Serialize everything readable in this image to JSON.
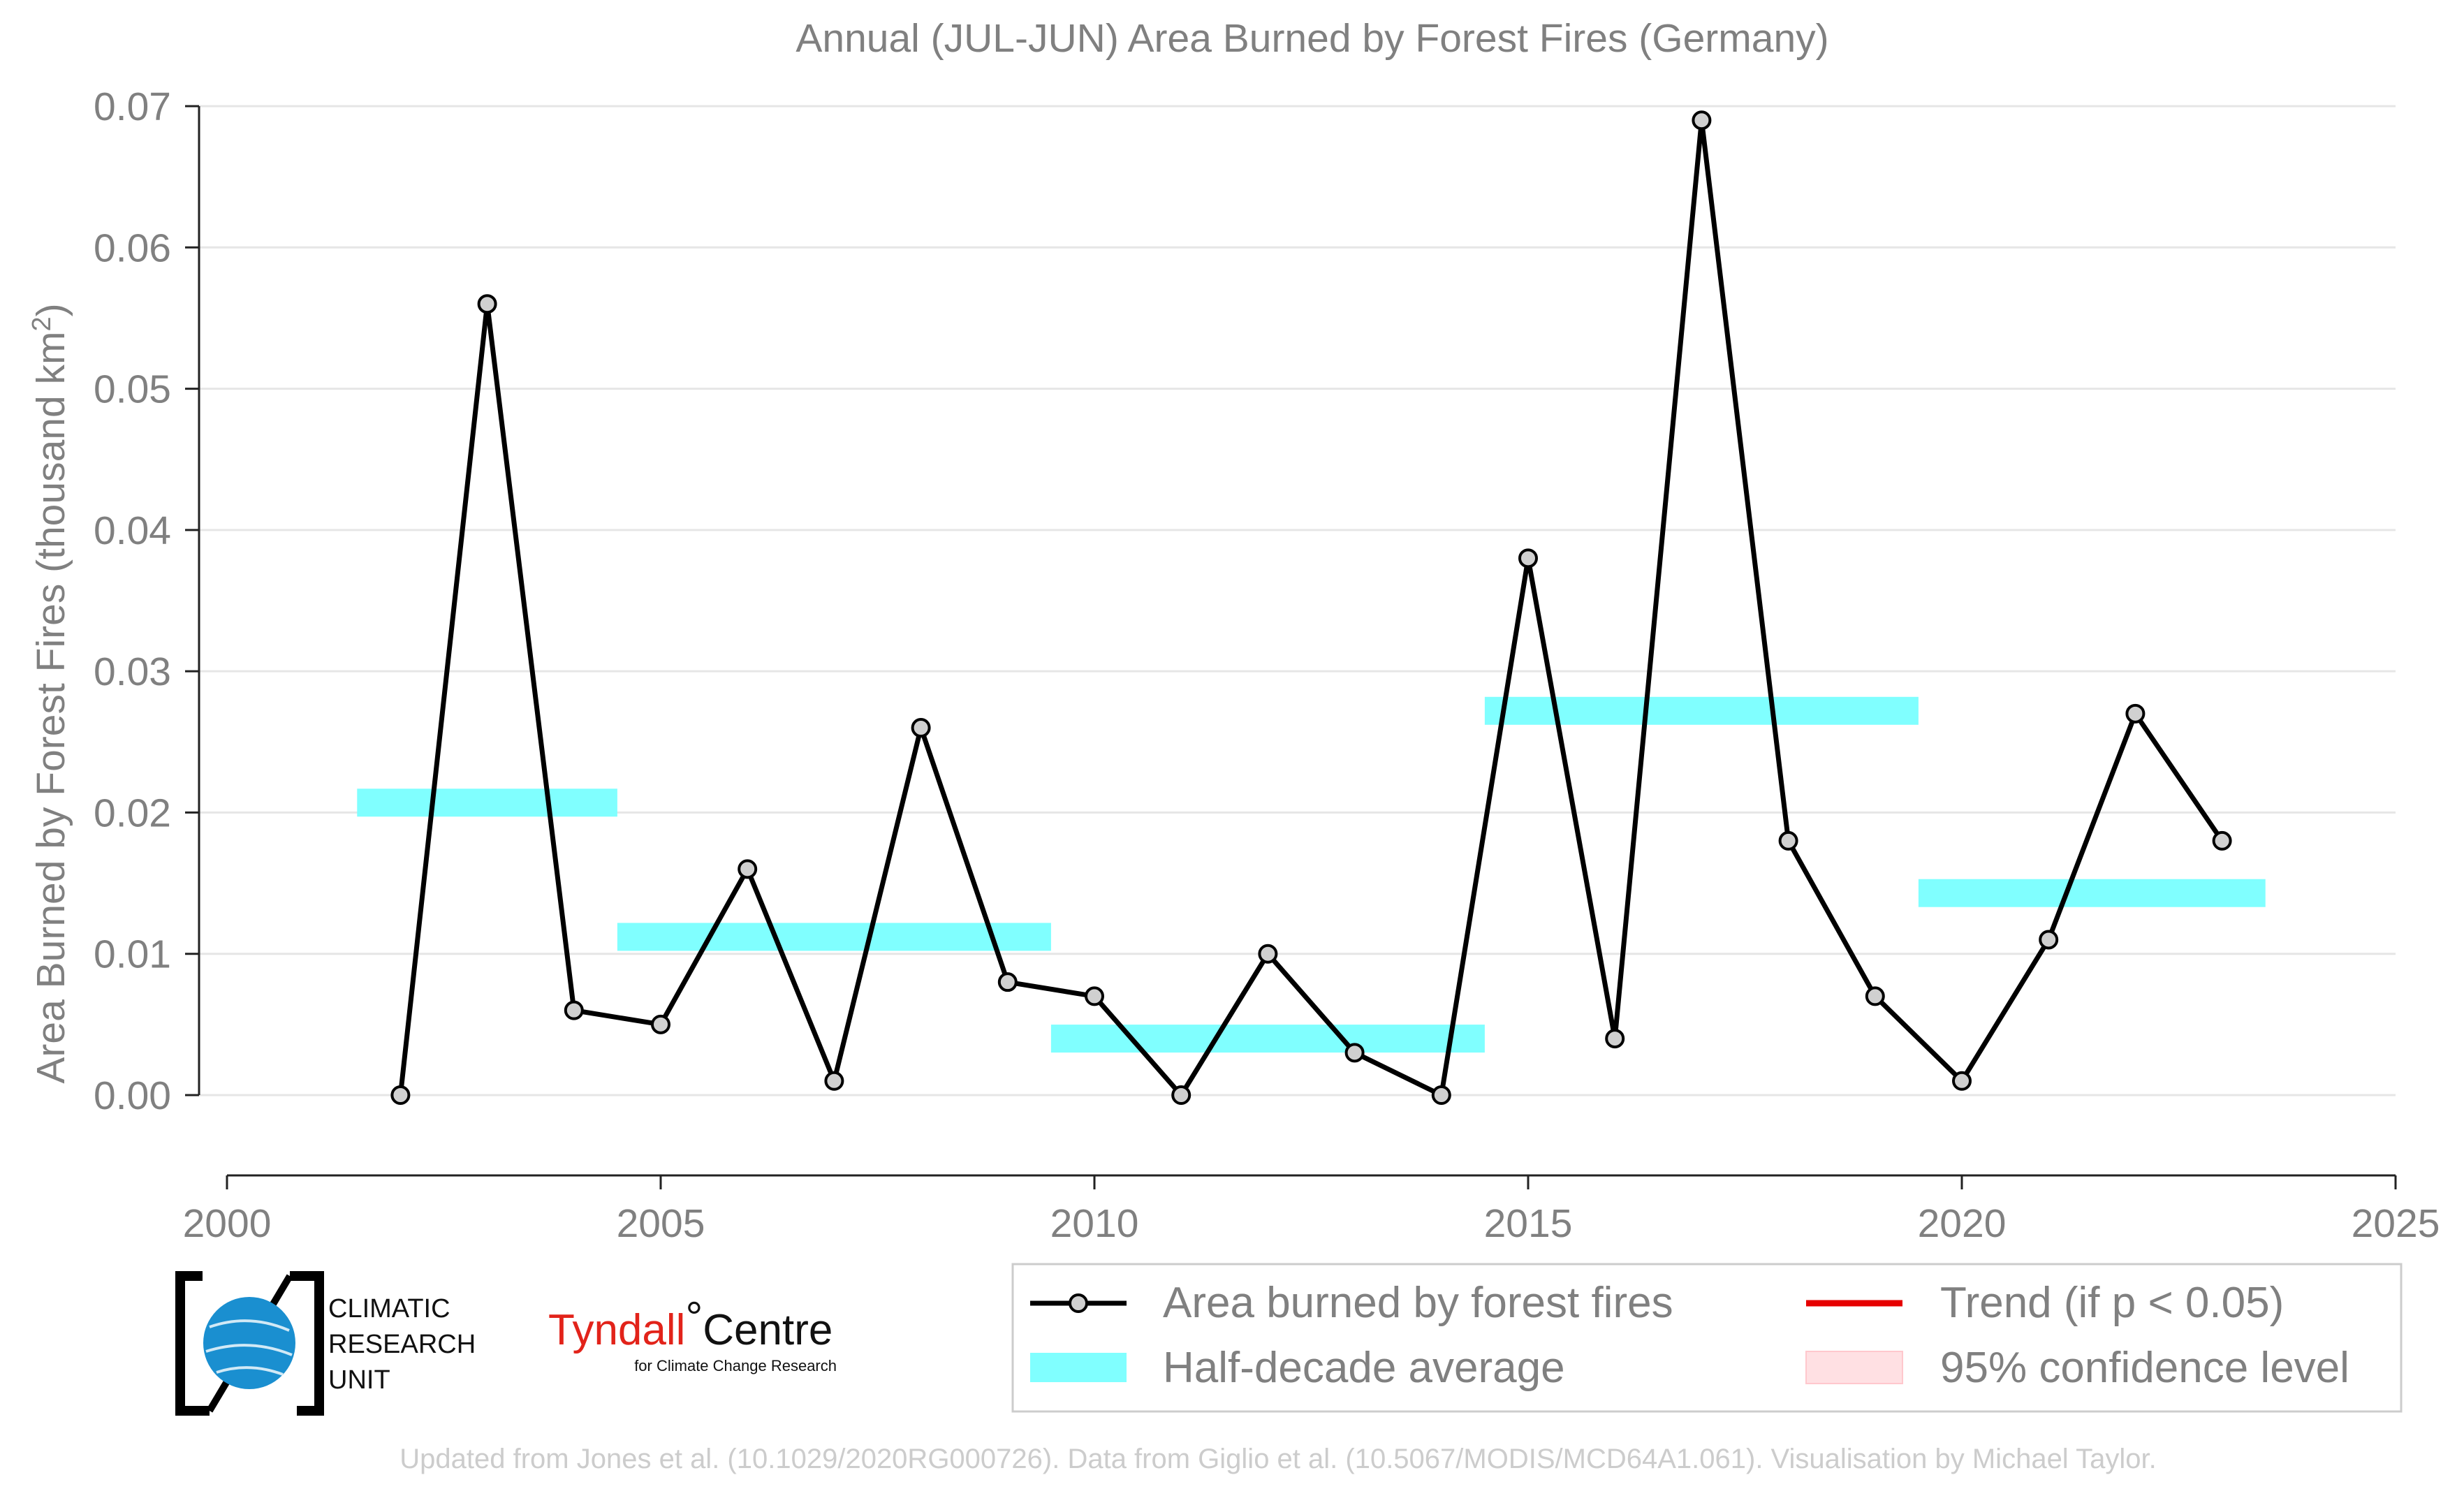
{
  "chart_data": {
    "type": "line",
    "title": "Annual (JUL-JUN) Area Burned by Forest Fires (Germany)",
    "ylabel_prefix": "Area Burned by Forest Fires (thousand km",
    "ylabel_sup": "2",
    "ylabel_suffix": ")",
    "xlim": [
      2000,
      2025
    ],
    "ylim": [
      -0.0055,
      0.07
    ],
    "x_ticks": [
      2000,
      2005,
      2010,
      2015,
      2020,
      2025
    ],
    "y_ticks": [
      "0.00",
      "0.01",
      "0.02",
      "0.03",
      "0.04",
      "0.05",
      "0.06",
      "0.07"
    ],
    "grid": true,
    "series": [
      {
        "name": "Area burned by forest fires",
        "color": "#000000",
        "marker_fill": "#d0d0d0",
        "x": [
          2002,
          2003,
          2004,
          2005,
          2006,
          2007,
          2008,
          2009,
          2010,
          2011,
          2012,
          2013,
          2014,
          2015,
          2016,
          2017,
          2018,
          2019,
          2020,
          2021,
          2022,
          2023
        ],
        "y": [
          0.0,
          0.056,
          0.006,
          0.005,
          0.016,
          0.001,
          0.026,
          0.008,
          0.007,
          0.0,
          0.01,
          0.003,
          0.0,
          0.038,
          0.004,
          0.069,
          0.018,
          0.007,
          0.001,
          0.011,
          0.027,
          0.018
        ]
      }
    ],
    "half_decade_average": {
      "name": "Half-decade average",
      "color": "#80ffff",
      "segments": [
        {
          "x_start": 2001.5,
          "x_end": 2004.5,
          "value": 0.0207
        },
        {
          "x_start": 2004.5,
          "x_end": 2009.5,
          "value": 0.0112
        },
        {
          "x_start": 2009.5,
          "x_end": 2014.5,
          "value": 0.004
        },
        {
          "x_start": 2014.5,
          "x_end": 2019.5,
          "value": 0.0272
        },
        {
          "x_start": 2019.5,
          "x_end": 2023.5,
          "value": 0.0143
        }
      ]
    },
    "legend": {
      "placement": "bottom-right",
      "items": [
        {
          "label": "Area burned by forest fires",
          "kind": "line-marker",
          "color": "#000000"
        },
        {
          "label": "Trend (if p < 0.05)",
          "kind": "line",
          "color": "#e60000"
        },
        {
          "label": "Half-decade average",
          "kind": "patch",
          "color": "#80ffff"
        },
        {
          "label": "95% confidence level",
          "kind": "patch",
          "color": "#ffe0e3"
        }
      ]
    }
  },
  "logos": {
    "cru_lines": [
      "CLIMATIC",
      "RESEARCH",
      "UNIT"
    ],
    "tyndall_red": "Tyndall",
    "tyndall_degree": "°",
    "tyndall_black": "Centre",
    "tyndall_sub": "for Climate Change Research"
  },
  "footer": "Updated from Jones et al. (10.1029/2020RG000726). Data from Giglio et al. (10.5067/MODIS/MCD64A1.061). Visualisation by Michael Taylor."
}
